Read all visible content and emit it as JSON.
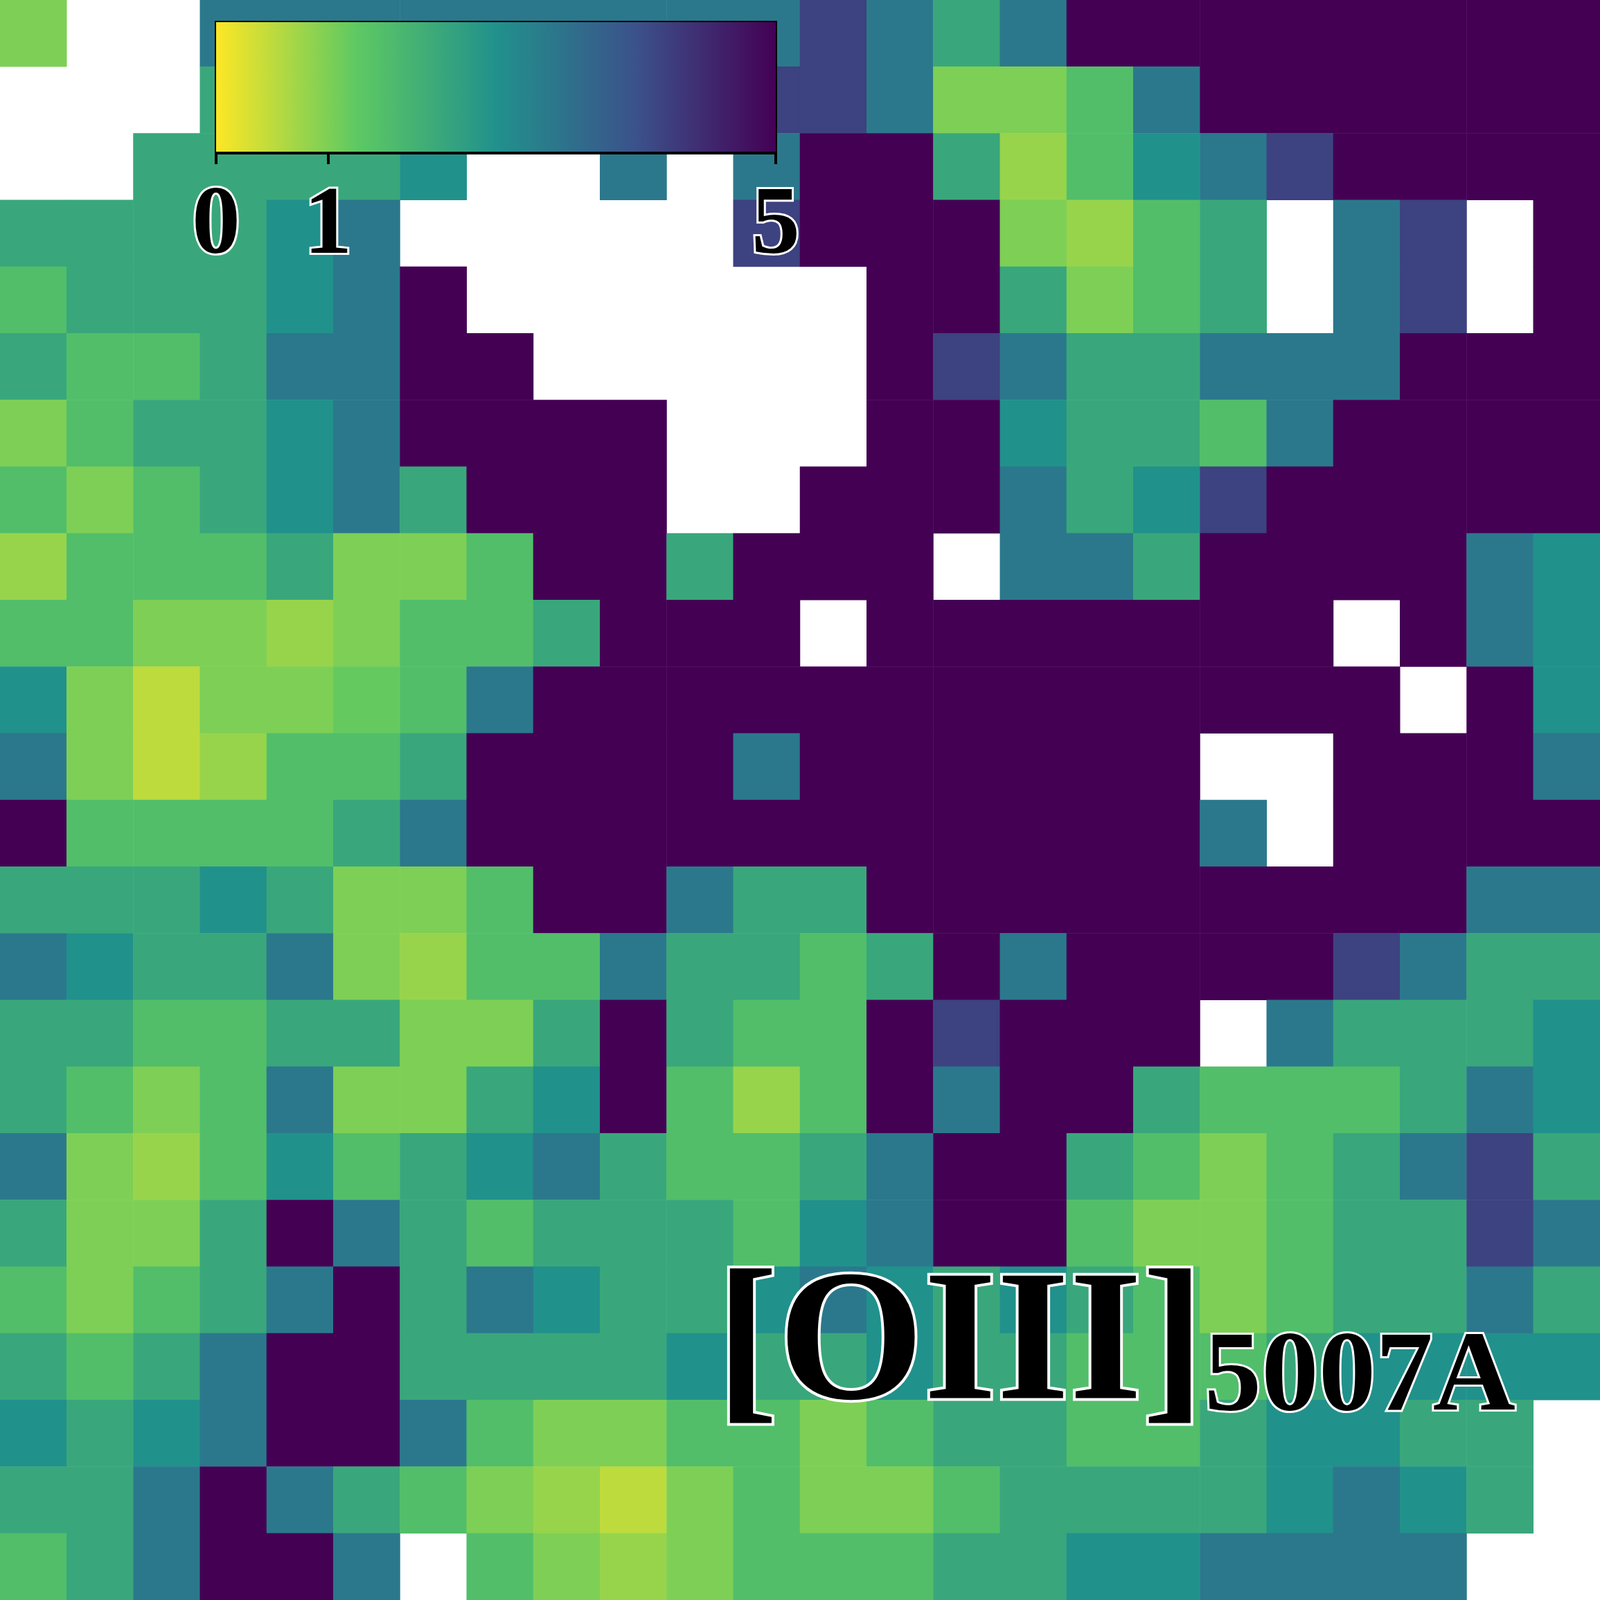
{
  "chart_data": {
    "type": "heatmap",
    "title": "[OIII]5007A",
    "tick_labels": false,
    "colorbar": {
      "range": [
        0,
        5
      ],
      "ticks": [
        0,
        1,
        5
      ]
    },
    "cells": [
      [
        1,
        null,
        null,
        3,
        3,
        3,
        3,
        3,
        3,
        3,
        3,
        3,
        4,
        3,
        2,
        3,
        5,
        5,
        5,
        5,
        5,
        5,
        5,
        5
      ],
      [
        null,
        null,
        null,
        2,
        2,
        2,
        2,
        2,
        2,
        2,
        3,
        4,
        4,
        3,
        1,
        1,
        1.5,
        3,
        5,
        5,
        5,
        5,
        5,
        5
      ],
      [
        null,
        null,
        2,
        2,
        2,
        2,
        2.5,
        null,
        null,
        3,
        null,
        3,
        5,
        5,
        2,
        0.8,
        1.5,
        2.5,
        3,
        4,
        5,
        5,
        5,
        5
      ],
      [
        2,
        2,
        2,
        2,
        2.5,
        3,
        null,
        null,
        null,
        null,
        null,
        4,
        5,
        5,
        5,
        1,
        0.8,
        1.5,
        2,
        null,
        3,
        4,
        null,
        5
      ],
      [
        1.5,
        2,
        2,
        2,
        2.5,
        3,
        5,
        null,
        null,
        null,
        null,
        null,
        null,
        5,
        5,
        2,
        1,
        1.5,
        2,
        null,
        3,
        4,
        null,
        5
      ],
      [
        2,
        1.5,
        1.5,
        2,
        3,
        3,
        5,
        5,
        null,
        null,
        null,
        null,
        null,
        5,
        4,
        3,
        2,
        2,
        3,
        3,
        3,
        5,
        5,
        5
      ],
      [
        1,
        1.5,
        2,
        2,
        2.5,
        3,
        5,
        5,
        5,
        5,
        null,
        null,
        null,
        5,
        5,
        2.5,
        2,
        2,
        1.5,
        3,
        5,
        5,
        5,
        5
      ],
      [
        1.5,
        1,
        1.5,
        2,
        2.5,
        3,
        2,
        5,
        5,
        5,
        null,
        null,
        5,
        5,
        5,
        3,
        2,
        2.5,
        4,
        5,
        5,
        5,
        5,
        5
      ],
      [
        0.8,
        1.5,
        1.5,
        1.5,
        2,
        1,
        1,
        1.5,
        5,
        5,
        2,
        5,
        5,
        5,
        null,
        3,
        3,
        2,
        5,
        5,
        5,
        5,
        3,
        2.5
      ],
      [
        1.5,
        1.5,
        1,
        1,
        0.8,
        1,
        1.5,
        1.5,
        2,
        5,
        5,
        5,
        null,
        5,
        5,
        5,
        5,
        5,
        5,
        5,
        null,
        5,
        3,
        2.5
      ],
      [
        2.5,
        1,
        0.5,
        1,
        1,
        1.2,
        1.5,
        3,
        5,
        5,
        5,
        5,
        5,
        5,
        5,
        5,
        5,
        5,
        5,
        5,
        5,
        null,
        5,
        2.5
      ],
      [
        3,
        1,
        0.5,
        0.8,
        1.5,
        1.5,
        2,
        5,
        5,
        5,
        5,
        3,
        5,
        5,
        5,
        5,
        5,
        5,
        null,
        null,
        5,
        5,
        5,
        3
      ],
      [
        5,
        1.5,
        1.5,
        1.5,
        1.5,
        2,
        3,
        5,
        5,
        5,
        5,
        5,
        5,
        5,
        5,
        5,
        5,
        5,
        3,
        null,
        5,
        5,
        5,
        5
      ],
      [
        2,
        2,
        2,
        2.5,
        2,
        1,
        1,
        1.5,
        5,
        5,
        3,
        2,
        2,
        5,
        5,
        5,
        5,
        5,
        5,
        5,
        5,
        5,
        3,
        3
      ],
      [
        3,
        2.5,
        2,
        2,
        3,
        1,
        0.8,
        1.5,
        1.5,
        3,
        2,
        2,
        1.5,
        2,
        5,
        3,
        5,
        5,
        5,
        5,
        4,
        3,
        2,
        2
      ],
      [
        2,
        2,
        1.5,
        1.5,
        2,
        2,
        1,
        1,
        2,
        5,
        2,
        1.5,
        1.5,
        5,
        4,
        5,
        5,
        5,
        null,
        3,
        2,
        2,
        2,
        2.5
      ],
      [
        2,
        1.5,
        1,
        1.5,
        3,
        1,
        1,
        2,
        2.5,
        5,
        1.5,
        0.8,
        1.5,
        5,
        3,
        5,
        5,
        2,
        1.5,
        1.5,
        1.5,
        2,
        3,
        2.5
      ],
      [
        3,
        1,
        0.8,
        1.5,
        2.5,
        1.5,
        2,
        2.5,
        3,
        2,
        1.5,
        1.5,
        2,
        3,
        5,
        5,
        2,
        1.5,
        1,
        1.5,
        2,
        3,
        4,
        2
      ],
      [
        2,
        1,
        1,
        2,
        5,
        3,
        2,
        1.5,
        2,
        2,
        2,
        1.5,
        2.5,
        3,
        5,
        5,
        1.5,
        1,
        1,
        1.5,
        2,
        2,
        4,
        3
      ],
      [
        1.5,
        1,
        1.5,
        2,
        3,
        5,
        2,
        3,
        2.5,
        2,
        2,
        2.5,
        3,
        2.5,
        2,
        2.5,
        2,
        1.5,
        1,
        1.5,
        2,
        2,
        3,
        2
      ],
      [
        2,
        1.5,
        2,
        3,
        5,
        5,
        2,
        2,
        2,
        2,
        2.5,
        2,
        2,
        2.5,
        2,
        2,
        1.5,
        1.5,
        1.5,
        2,
        2.5,
        2.5,
        2.5,
        2.5
      ],
      [
        2.5,
        2,
        2.5,
        3,
        5,
        5,
        3,
        1.5,
        1,
        1,
        1.5,
        1.5,
        1,
        1.5,
        2,
        2,
        1.5,
        1.5,
        2,
        2.5,
        2.5,
        2,
        2,
        null
      ],
      [
        2,
        2,
        3,
        5,
        3,
        2,
        1.5,
        1,
        0.8,
        0.5,
        1,
        1.5,
        1,
        1,
        1.5,
        2,
        2,
        2,
        2,
        2.5,
        3,
        2.5,
        2,
        null
      ],
      [
        1.5,
        2,
        3,
        5,
        5,
        3,
        null,
        1.5,
        1,
        0.8,
        1,
        1.5,
        1.5,
        1.5,
        2,
        2,
        2.5,
        2.5,
        3,
        3,
        3,
        3,
        null,
        null
      ]
    ]
  }
}
